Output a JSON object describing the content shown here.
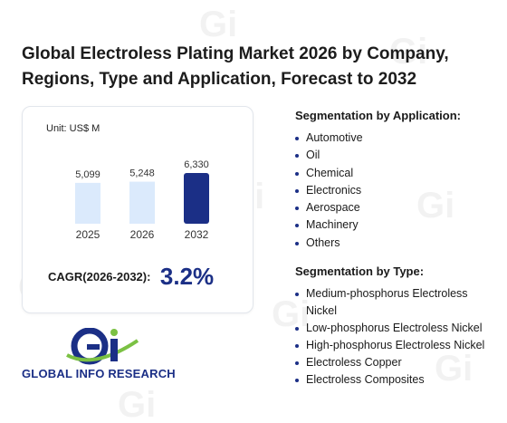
{
  "title": "Global Electroless Plating Market 2026 by Company, Regions, Type and Application, Forecast to 2032",
  "chart": {
    "unit_label": "Unit: US$ M",
    "cagr_label": "CAGR(2026-2032):",
    "cagr_value": "3.2%",
    "colors": {
      "light_bar": "#dbeafc",
      "highlight_bar": "#1b2f86"
    }
  },
  "chart_data": {
    "type": "bar",
    "categories": [
      "2025",
      "2026",
      "2032"
    ],
    "values": [
      5099,
      5248,
      6330
    ],
    "value_labels": [
      "5,099",
      "5,248",
      "6,330"
    ],
    "ylabel": "US$ M",
    "ylim": [
      0,
      6330
    ],
    "grid": false,
    "legend": "none"
  },
  "application": {
    "heading": "Segmentation by Application:",
    "items": [
      "Automotive",
      "Oil",
      "Chemical",
      "Electronics",
      "Aerospace",
      "Machinery",
      "Others"
    ]
  },
  "type": {
    "heading": "Segmentation by Type:",
    "items": [
      "Medium-phosphorus Electroless Nickel",
      "Low-phosphorus Electroless Nickel",
      "High-phosphorus Electroless Nickel",
      "Electroless Copper",
      "Electroless Composites"
    ]
  },
  "logo": {
    "text": "GLOBAL INFO RESEARCH",
    "colors": {
      "primary": "#1b2f86",
      "accent": "#7bc143"
    }
  }
}
